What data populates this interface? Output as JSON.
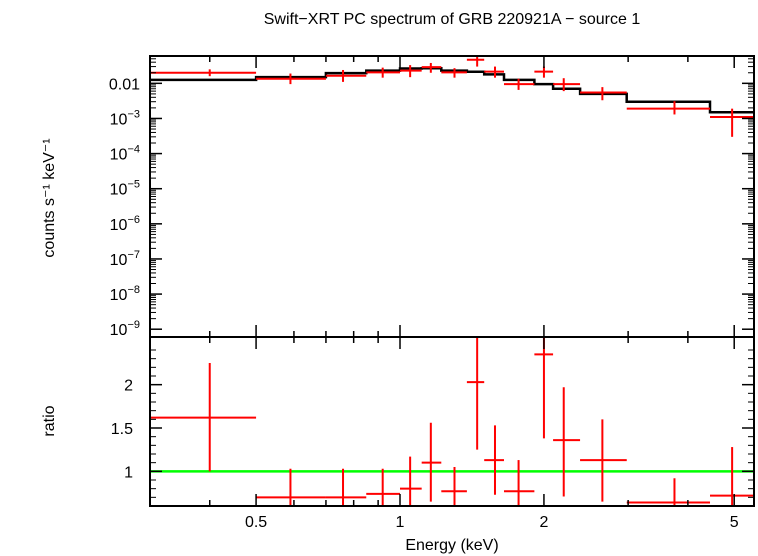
{
  "title": "Swift−XRT PC spectrum of GRB 220921A − source 1",
  "colors": {
    "data": "#ff0000",
    "model": "#000000",
    "unity": "#00ff00",
    "axes": "#000000"
  },
  "chart_data": [
    {
      "type": "line",
      "panel": "spectrum",
      "ylabel": "counts s⁻¹ keV⁻¹",
      "xscale": "log",
      "yscale": "log",
      "xlim": [
        0.3,
        5.5
      ],
      "ylim": [
        6e-10,
        0.06
      ],
      "yticks": [
        {
          "value": 0.01,
          "label": "0.01"
        },
        {
          "value": 0.001,
          "base": "10",
          "exp": "−3"
        },
        {
          "value": 0.0001,
          "base": "10",
          "exp": "−4"
        },
        {
          "value": 1e-05,
          "base": "10",
          "exp": "−5"
        },
        {
          "value": 1e-06,
          "base": "10",
          "exp": "−6"
        },
        {
          "value": 1e-07,
          "base": "10",
          "exp": "−7"
        },
        {
          "value": 1e-08,
          "base": "10",
          "exp": "−8"
        },
        {
          "value": 1e-09,
          "base": "10",
          "exp": "−9"
        }
      ],
      "data_points": [
        {
          "x": 0.4,
          "xlo": 0.3,
          "xhi": 0.5,
          "y": 0.02,
          "ylo": 0.016,
          "yhi": 0.025
        },
        {
          "x": 0.59,
          "xlo": 0.5,
          "xhi": 0.7,
          "y": 0.0135,
          "ylo": 0.0095,
          "yhi": 0.019
        },
        {
          "x": 0.76,
          "xlo": 0.7,
          "xhi": 0.85,
          "y": 0.0165,
          "ylo": 0.011,
          "yhi": 0.024
        },
        {
          "x": 0.92,
          "xlo": 0.85,
          "xhi": 1.0,
          "y": 0.0205,
          "ylo": 0.0145,
          "yhi": 0.028
        },
        {
          "x": 1.05,
          "xlo": 1.0,
          "xhi": 1.11,
          "y": 0.023,
          "ylo": 0.015,
          "yhi": 0.033
        },
        {
          "x": 1.16,
          "xlo": 1.11,
          "xhi": 1.22,
          "y": 0.029,
          "ylo": 0.02,
          "yhi": 0.038
        },
        {
          "x": 1.3,
          "xlo": 1.22,
          "xhi": 1.38,
          "y": 0.0205,
          "ylo": 0.0145,
          "yhi": 0.027
        },
        {
          "x": 1.45,
          "xlo": 1.38,
          "xhi": 1.5,
          "y": 0.047,
          "ylo": 0.03,
          "yhi": 0.06
        },
        {
          "x": 1.58,
          "xlo": 1.5,
          "xhi": 1.65,
          "y": 0.0215,
          "ylo": 0.0145,
          "yhi": 0.03
        },
        {
          "x": 1.77,
          "xlo": 1.65,
          "xhi": 1.91,
          "y": 0.0095,
          "ylo": 0.0065,
          "yhi": 0.0135
        },
        {
          "x": 2.0,
          "xlo": 1.91,
          "xhi": 2.09,
          "y": 0.0215,
          "ylo": 0.0145,
          "yhi": 0.03
        },
        {
          "x": 2.2,
          "xlo": 2.09,
          "xhi": 2.38,
          "y": 0.0095,
          "ylo": 0.006,
          "yhi": 0.014
        },
        {
          "x": 2.65,
          "xlo": 2.38,
          "xhi": 2.98,
          "y": 0.0055,
          "ylo": 0.0033,
          "yhi": 0.0078
        },
        {
          "x": 3.75,
          "xlo": 2.98,
          "xhi": 4.45,
          "y": 0.0019,
          "ylo": 0.0013,
          "yhi": 0.0031
        },
        {
          "x": 4.95,
          "xlo": 4.45,
          "xhi": 5.5,
          "y": 0.0011,
          "ylo": 0.0003,
          "yhi": 0.0019
        }
      ],
      "model": [
        {
          "xlo": 0.3,
          "xhi": 0.5,
          "y": 0.0125
        },
        {
          "xlo": 0.5,
          "xhi": 0.7,
          "y": 0.015
        },
        {
          "xlo": 0.7,
          "xhi": 0.85,
          "y": 0.0195
        },
        {
          "xlo": 0.85,
          "xhi": 1.0,
          "y": 0.023
        },
        {
          "xlo": 1.0,
          "xhi": 1.11,
          "y": 0.0265
        },
        {
          "xlo": 1.11,
          "xhi": 1.22,
          "y": 0.027
        },
        {
          "xlo": 1.22,
          "xhi": 1.38,
          "y": 0.023
        },
        {
          "xlo": 1.38,
          "xhi": 1.5,
          "y": 0.0215
        },
        {
          "xlo": 1.5,
          "xhi": 1.65,
          "y": 0.018
        },
        {
          "xlo": 1.65,
          "xhi": 1.91,
          "y": 0.0125
        },
        {
          "xlo": 1.91,
          "xhi": 2.09,
          "y": 0.0095
        },
        {
          "xlo": 2.09,
          "xhi": 2.38,
          "y": 0.007
        },
        {
          "xlo": 2.38,
          "xhi": 2.98,
          "y": 0.005
        },
        {
          "xlo": 2.98,
          "xhi": 4.45,
          "y": 0.003
        },
        {
          "xlo": 4.45,
          "xhi": 5.5,
          "y": 0.0015
        }
      ]
    },
    {
      "type": "scatter",
      "panel": "ratio",
      "xlabel": "Energy (keV)",
      "ylabel": "ratio",
      "xscale": "log",
      "xlim": [
        0.3,
        5.5
      ],
      "ylim": [
        0.6,
        2.55
      ],
      "unity_line": 1,
      "xticks": [
        {
          "value": 0.5,
          "label": "0.5"
        },
        {
          "value": 1,
          "label": "1"
        },
        {
          "value": 2,
          "label": "2"
        },
        {
          "value": 5,
          "label": "5"
        }
      ],
      "yticks": [
        {
          "value": 1,
          "label": "1"
        },
        {
          "value": 1.5,
          "label": "1.5"
        },
        {
          "value": 2,
          "label": "2"
        }
      ],
      "data_points": [
        {
          "x": 0.4,
          "xlo": 0.3,
          "xhi": 0.5,
          "y": 1.62,
          "ylo": 1.0,
          "yhi": 2.25
        },
        {
          "x": 0.59,
          "xlo": 0.5,
          "xhi": 0.7,
          "y": 0.7,
          "ylo": 0.55,
          "yhi": 1.03
        },
        {
          "x": 0.76,
          "xlo": 0.7,
          "xhi": 0.85,
          "y": 0.7,
          "ylo": 0.55,
          "yhi": 1.03
        },
        {
          "x": 0.92,
          "xlo": 0.85,
          "xhi": 1.0,
          "y": 0.74,
          "ylo": 0.55,
          "yhi": 1.03
        },
        {
          "x": 1.05,
          "xlo": 1.0,
          "xhi": 1.11,
          "y": 0.8,
          "ylo": 0.55,
          "yhi": 1.17
        },
        {
          "x": 1.16,
          "xlo": 1.11,
          "xhi": 1.22,
          "y": 1.1,
          "ylo": 0.65,
          "yhi": 1.56
        },
        {
          "x": 1.3,
          "xlo": 1.22,
          "xhi": 1.38,
          "y": 0.77,
          "ylo": 0.55,
          "yhi": 1.05
        },
        {
          "x": 1.45,
          "xlo": 1.38,
          "xhi": 1.5,
          "y": 2.03,
          "ylo": 1.25,
          "yhi": 2.55
        },
        {
          "x": 1.58,
          "xlo": 1.5,
          "xhi": 1.65,
          "y": 1.13,
          "ylo": 0.73,
          "yhi": 1.53
        },
        {
          "x": 1.77,
          "xlo": 1.65,
          "xhi": 1.91,
          "y": 0.77,
          "ylo": 0.55,
          "yhi": 1.13
        },
        {
          "x": 2.0,
          "xlo": 1.91,
          "xhi": 2.09,
          "y": 2.35,
          "ylo": 1.38,
          "yhi": 2.55
        },
        {
          "x": 2.2,
          "xlo": 2.09,
          "xhi": 2.38,
          "y": 1.36,
          "ylo": 0.71,
          "yhi": 1.97
        },
        {
          "x": 2.65,
          "xlo": 2.38,
          "xhi": 2.98,
          "y": 1.13,
          "ylo": 0.65,
          "yhi": 1.6
        },
        {
          "x": 3.75,
          "xlo": 2.98,
          "xhi": 4.45,
          "y": 0.64,
          "ylo": 0.55,
          "yhi": 0.92
        },
        {
          "x": 4.95,
          "xlo": 4.45,
          "xhi": 5.5,
          "y": 0.72,
          "ylo": 0.55,
          "yhi": 1.28
        }
      ]
    }
  ]
}
